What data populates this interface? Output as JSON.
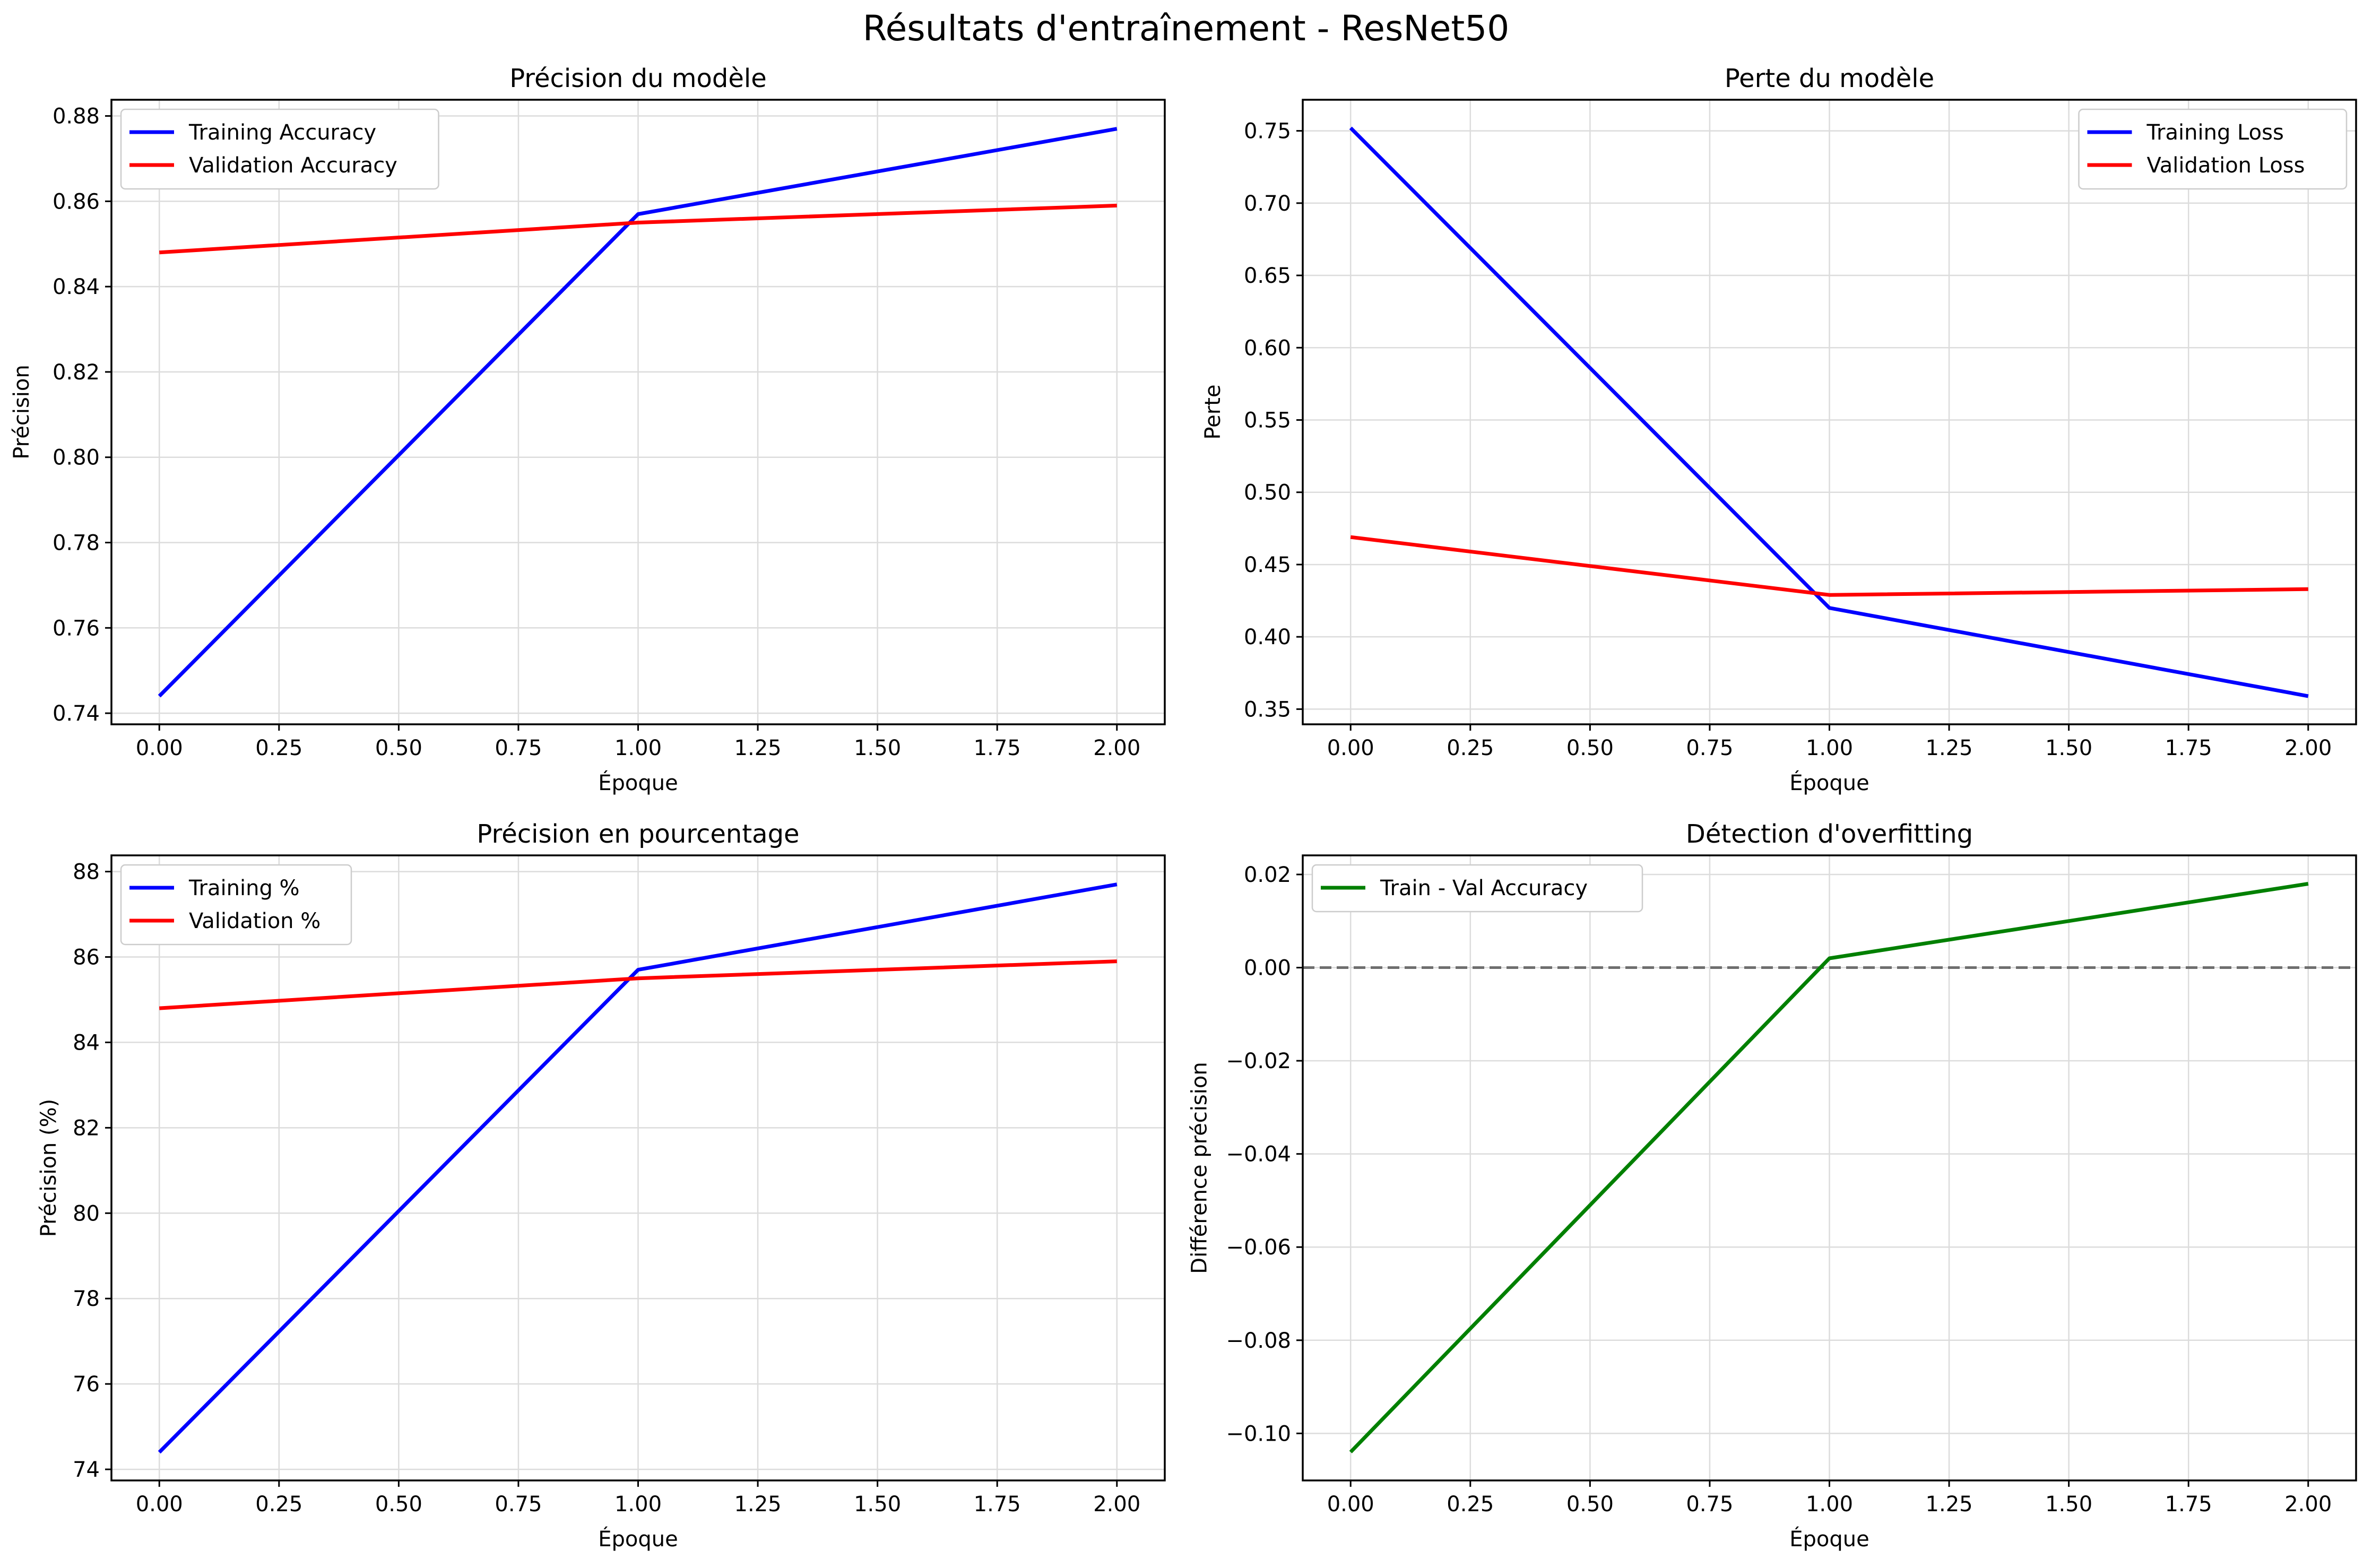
{
  "suptitle": "Résultats d'entraînement - ResNet50",
  "chart_data": [
    {
      "type": "line",
      "title": "Précision du modèle",
      "xlabel": "Époque",
      "ylabel": "Précision",
      "x": [
        0,
        1,
        2
      ],
      "xlim": [
        -0.1,
        2.1
      ],
      "ylim": [
        0.7374,
        0.8838
      ],
      "xticks": [
        0.0,
        0.25,
        0.5,
        0.75,
        1.0,
        1.25,
        1.5,
        1.75,
        2.0
      ],
      "xtick_labels": [
        "0.00",
        "0.25",
        "0.50",
        "0.75",
        "1.00",
        "1.25",
        "1.50",
        "1.75",
        "2.00"
      ],
      "yticks": [
        0.74,
        0.76,
        0.78,
        0.8,
        0.82,
        0.84,
        0.86,
        0.88
      ],
      "ytick_labels": [
        "0.74",
        "0.76",
        "0.78",
        "0.80",
        "0.82",
        "0.84",
        "0.86",
        "0.88"
      ],
      "grid": true,
      "legend_position": "upper-left",
      "series": [
        {
          "name": "Training Accuracy",
          "color": "#0000ff",
          "values": [
            0.744,
            0.857,
            0.877
          ]
        },
        {
          "name": "Validation Accuracy",
          "color": "#ff0000",
          "values": [
            0.848,
            0.855,
            0.859
          ]
        }
      ]
    },
    {
      "type": "line",
      "title": "Perte du modèle",
      "xlabel": "Époque",
      "ylabel": "Perte",
      "x": [
        0,
        1,
        2
      ],
      "xlim": [
        -0.1,
        2.1
      ],
      "ylim": [
        0.3395,
        0.7715
      ],
      "xticks": [
        0.0,
        0.25,
        0.5,
        0.75,
        1.0,
        1.25,
        1.5,
        1.75,
        2.0
      ],
      "xtick_labels": [
        "0.00",
        "0.25",
        "0.50",
        "0.75",
        "1.00",
        "1.25",
        "1.50",
        "1.75",
        "2.00"
      ],
      "yticks": [
        0.35,
        0.4,
        0.45,
        0.5,
        0.55,
        0.6,
        0.65,
        0.7,
        0.75
      ],
      "ytick_labels": [
        "0.35",
        "0.40",
        "0.45",
        "0.50",
        "0.55",
        "0.60",
        "0.65",
        "0.70",
        "0.75"
      ],
      "grid": true,
      "legend_position": "upper-right",
      "series": [
        {
          "name": "Training Loss",
          "color": "#0000ff",
          "values": [
            0.752,
            0.42,
            0.359
          ]
        },
        {
          "name": "Validation Loss",
          "color": "#ff0000",
          "values": [
            0.469,
            0.429,
            0.433
          ]
        }
      ]
    },
    {
      "type": "line",
      "title": "Précision en pourcentage",
      "xlabel": "Époque",
      "ylabel": "Précision (%)",
      "x": [
        0,
        1,
        2
      ],
      "xlim": [
        -0.1,
        2.1
      ],
      "ylim": [
        73.74,
        88.38
      ],
      "xticks": [
        0.0,
        0.25,
        0.5,
        0.75,
        1.0,
        1.25,
        1.5,
        1.75,
        2.0
      ],
      "xtick_labels": [
        "0.00",
        "0.25",
        "0.50",
        "0.75",
        "1.00",
        "1.25",
        "1.50",
        "1.75",
        "2.00"
      ],
      "yticks": [
        74,
        76,
        78,
        80,
        82,
        84,
        86,
        88
      ],
      "ytick_labels": [
        "74",
        "76",
        "78",
        "80",
        "82",
        "84",
        "86",
        "88"
      ],
      "grid": true,
      "legend_position": "upper-left",
      "series": [
        {
          "name": "Training %",
          "color": "#0000ff",
          "values": [
            74.4,
            85.7,
            87.7
          ]
        },
        {
          "name": "Validation %",
          "color": "#ff0000",
          "values": [
            84.8,
            85.5,
            85.9
          ]
        }
      ]
    },
    {
      "type": "line",
      "title": "Détection d'overfitting",
      "xlabel": "Époque",
      "ylabel": "Différence précision",
      "x": [
        0,
        1,
        2
      ],
      "xlim": [
        -0.1,
        2.1
      ],
      "ylim": [
        -0.1101,
        0.0241
      ],
      "xticks": [
        0.0,
        0.25,
        0.5,
        0.75,
        1.0,
        1.25,
        1.5,
        1.75,
        2.0
      ],
      "xtick_labels": [
        "0.00",
        "0.25",
        "0.50",
        "0.75",
        "1.00",
        "1.25",
        "1.50",
        "1.75",
        "2.00"
      ],
      "yticks": [
        -0.1,
        -0.08,
        -0.06,
        -0.04,
        -0.02,
        0.0,
        0.02
      ],
      "ytick_labels": [
        "−0.10",
        "−0.08",
        "−0.06",
        "−0.04",
        "−0.02",
        "0.00",
        "0.02"
      ],
      "grid": true,
      "legend_position": "upper-left",
      "reference_line": {
        "y": 0,
        "style": "dashed",
        "color": "#6e6e6e"
      },
      "series": [
        {
          "name": "Train - Val Accuracy",
          "color": "#008000",
          "values": [
            -0.104,
            0.002,
            0.018
          ]
        }
      ]
    }
  ]
}
